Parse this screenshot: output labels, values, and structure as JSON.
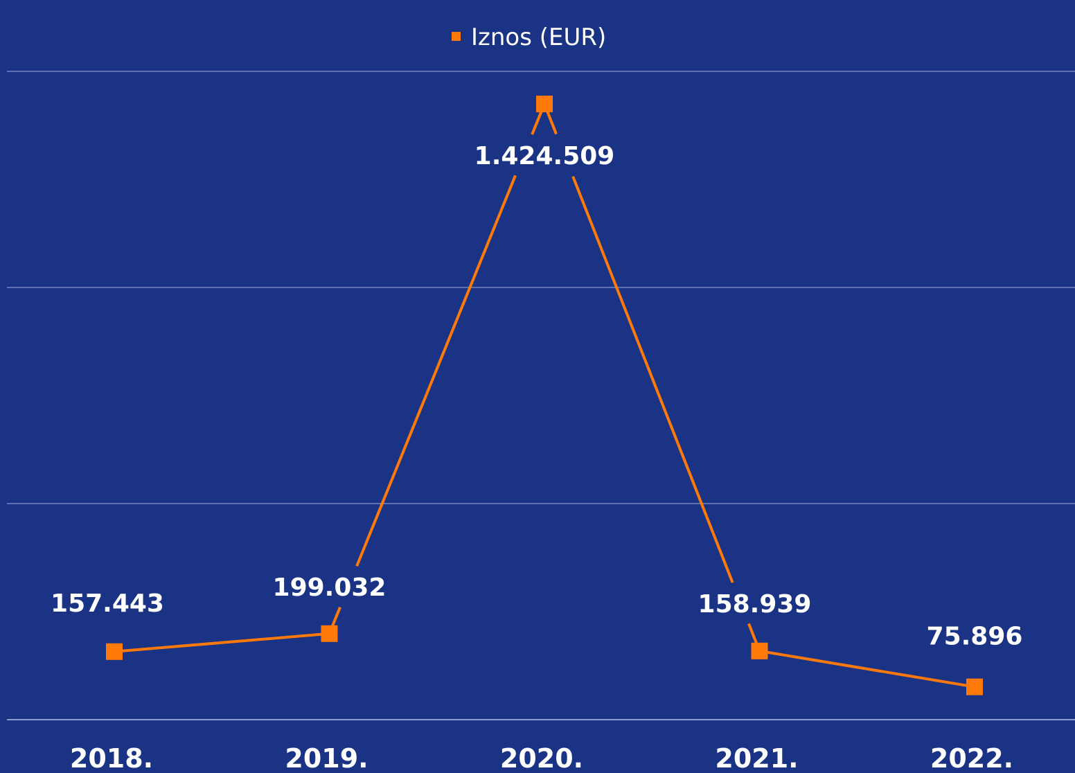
{
  "chart_data": {
    "type": "line",
    "categories": [
      "2018.",
      "2019.",
      "2020.",
      "2021.",
      "2022."
    ],
    "series": [
      {
        "name": "Iznos (EUR)",
        "values": [
          157443,
          199032,
          1424509,
          158939,
          75896
        ],
        "labels": [
          "157.443",
          "199.032",
          "1.424.509",
          "158.939",
          "75.896"
        ]
      }
    ],
    "title": "",
    "xlabel": "",
    "ylabel": "",
    "ylim": [
      0,
      1500000
    ],
    "grid": true,
    "legend": "top-center"
  },
  "colors": {
    "background": "#1b3384",
    "series": "#ff7a0a",
    "grid": "#5d71b4",
    "text": "#ffffff"
  }
}
